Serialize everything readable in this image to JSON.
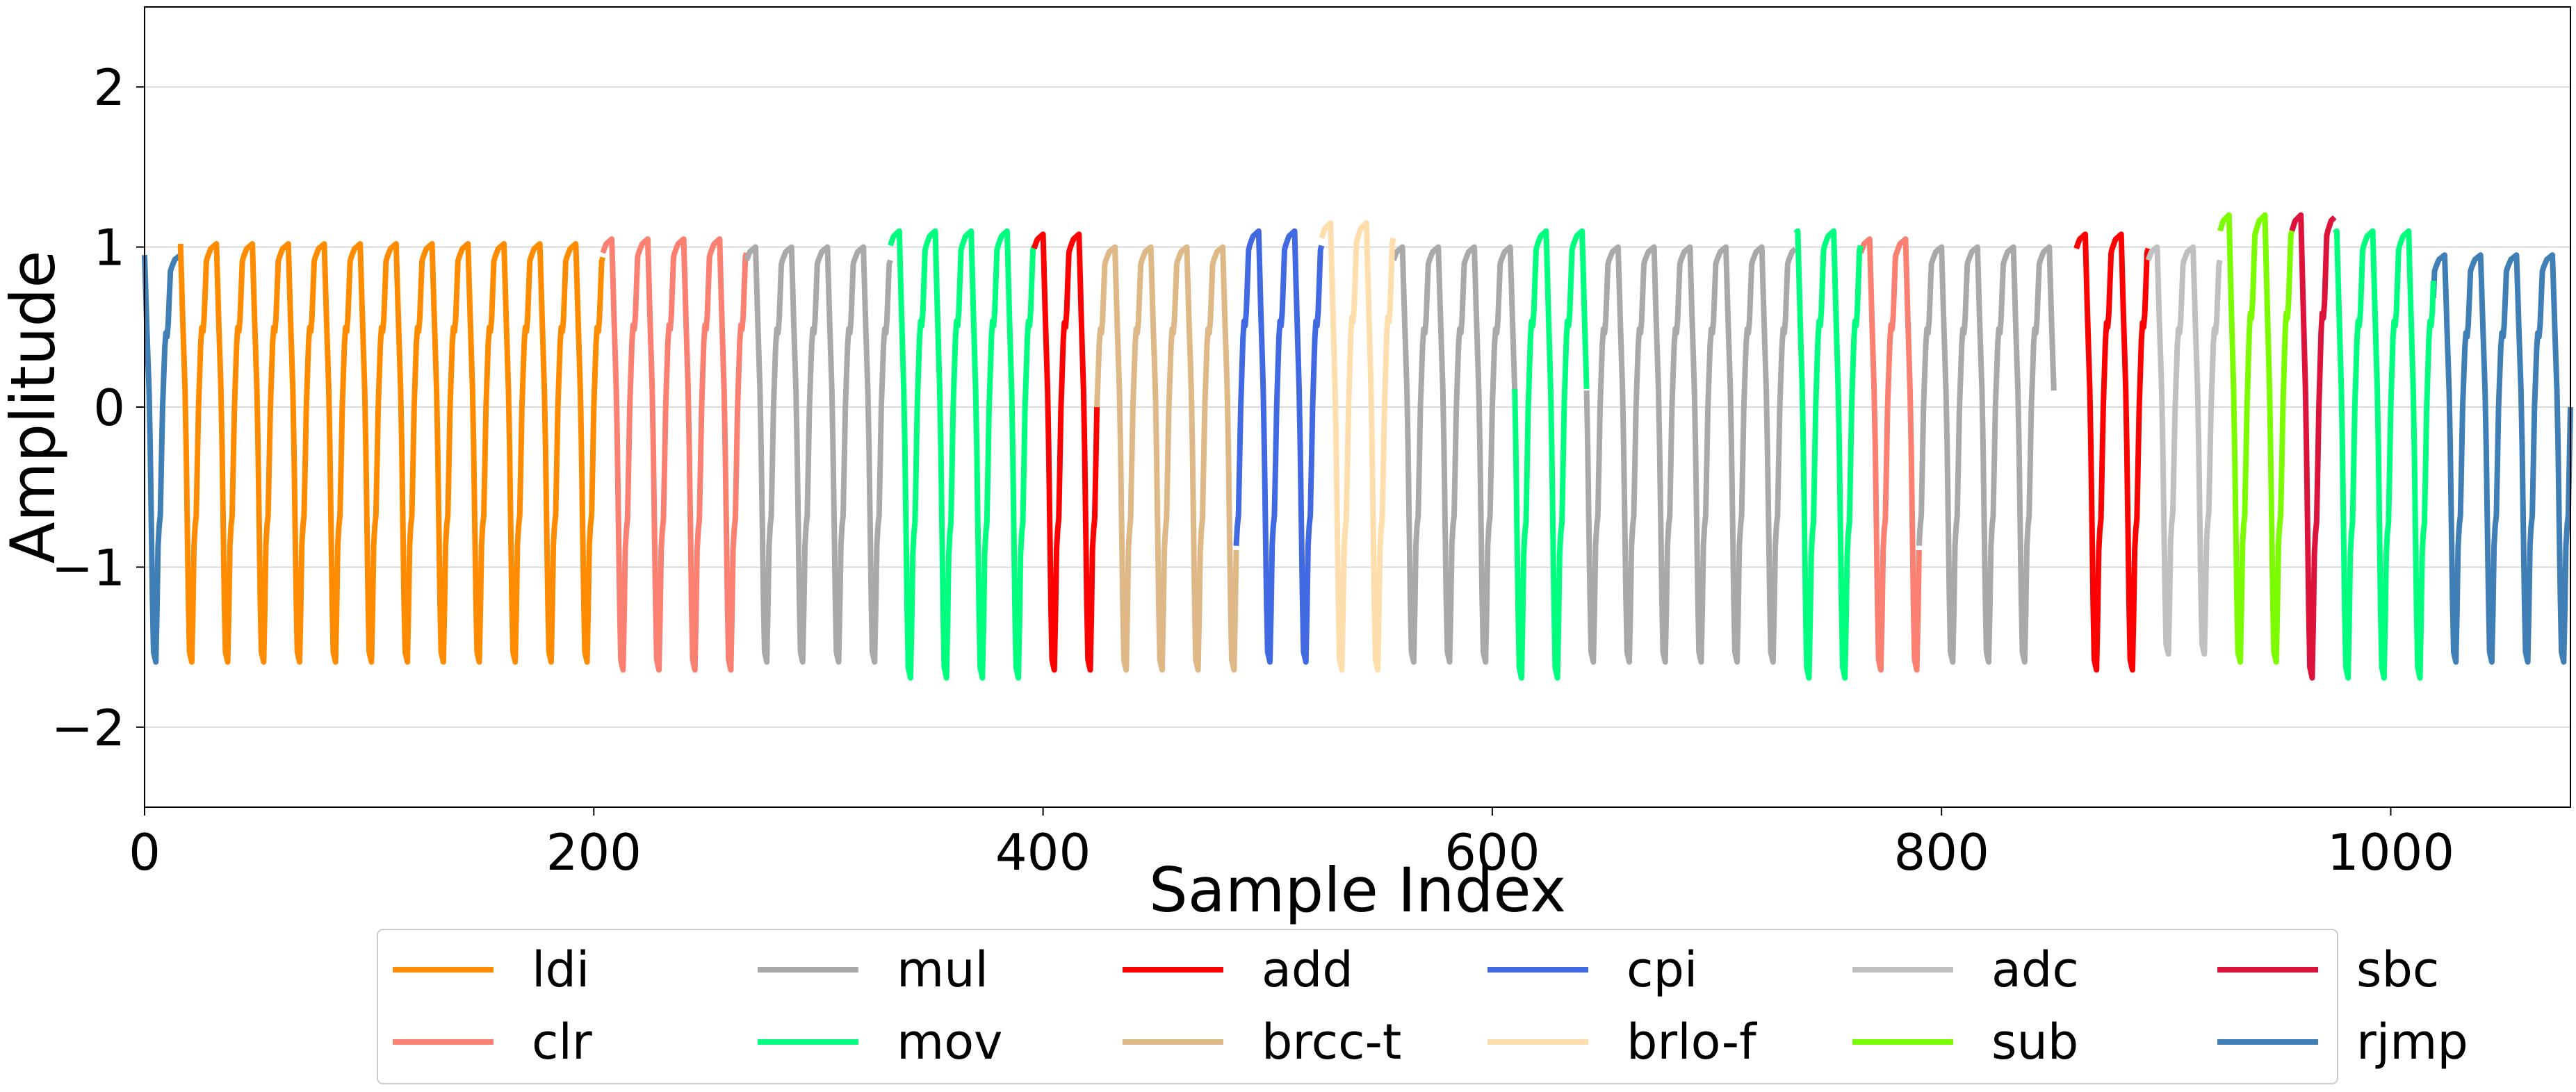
{
  "chart_data": {
    "type": "line",
    "title": "",
    "xlabel": "Sample Index",
    "ylabel": "Amplitude",
    "xlim": [
      0,
      1080
    ],
    "ylim": [
      -2.5,
      2.5
    ],
    "xticks": [
      0,
      200,
      400,
      600,
      800,
      1000
    ],
    "yticks": [
      -2,
      -1,
      0,
      1,
      2
    ],
    "xtick_labels": [
      "0",
      "200",
      "400",
      "600",
      "800",
      "1000"
    ],
    "ytick_labels": [
      "−2",
      "−1",
      "0",
      "1",
      "2"
    ],
    "grid": "horizontal",
    "legend": {
      "placement": "bottom-center",
      "columns": 7
    },
    "period_samples": 16,
    "series": [
      {
        "name": "rjmp",
        "color": "#3f7fb5",
        "ranges": [
          [
            0,
            16
          ],
          [
            1019,
            1080
          ]
        ],
        "peak": 0.95,
        "trough": -1.6
      },
      {
        "name": "ldi",
        "color": "#ff8c00",
        "ranges": [
          [
            16,
            204
          ]
        ],
        "peak": 1.02,
        "trough": -1.6
      },
      {
        "name": "clr",
        "color": "#fa8072",
        "ranges": [
          [
            204,
            268
          ],
          [
            764,
            790
          ]
        ],
        "peak": 1.05,
        "trough": -1.65
      },
      {
        "name": "mul",
        "color": "#a9a9a9",
        "ranges": [
          [
            268,
            332
          ],
          [
            556,
            610
          ],
          [
            642,
            735
          ],
          [
            790,
            850
          ]
        ],
        "peak": 1.0,
        "trough": -1.6
      },
      {
        "name": "mov",
        "color": "#00ff7f",
        "ranges": [
          [
            332,
            396
          ],
          [
            610,
            642
          ],
          [
            735,
            764
          ],
          [
            975,
            1019
          ]
        ],
        "peak": 1.1,
        "trough": -1.7
      },
      {
        "name": "add",
        "color": "#ff0000",
        "ranges": [
          [
            396,
            424
          ],
          [
            860,
            892
          ]
        ],
        "peak": 1.08,
        "trough": -1.65
      },
      {
        "name": "brcc-t",
        "color": "#deb887",
        "ranges": [
          [
            424,
            486
          ]
        ],
        "peak": 1.0,
        "trough": -1.65
      },
      {
        "name": "cpi",
        "color": "#4169e1",
        "ranges": [
          [
            486,
            524
          ]
        ],
        "peak": 1.1,
        "trough": -1.6
      },
      {
        "name": "brlo-f",
        "color": "#ffdead",
        "ranges": [
          [
            524,
            556
          ]
        ],
        "peak": 1.15,
        "trough": -1.65
      },
      {
        "name": "adc",
        "color": "#c0c0c0",
        "ranges": [
          [
            892,
            924
          ]
        ],
        "peak": 1.0,
        "trough": -1.55
      },
      {
        "name": "sub",
        "color": "#7cfc00",
        "ranges": [
          [
            924,
            956
          ]
        ],
        "peak": 1.2,
        "trough": -1.6
      },
      {
        "name": "sbc",
        "color": "#dc143c",
        "ranges": [
          [
            956,
            975
          ]
        ],
        "peak": 1.2,
        "trough": -1.7
      }
    ],
    "legend_order": [
      "ldi",
      "clr",
      "mul",
      "mov",
      "add",
      "brcc-t",
      "cpi",
      "brlo-f",
      "adc",
      "sub",
      "sbc",
      "rjmp"
    ]
  }
}
